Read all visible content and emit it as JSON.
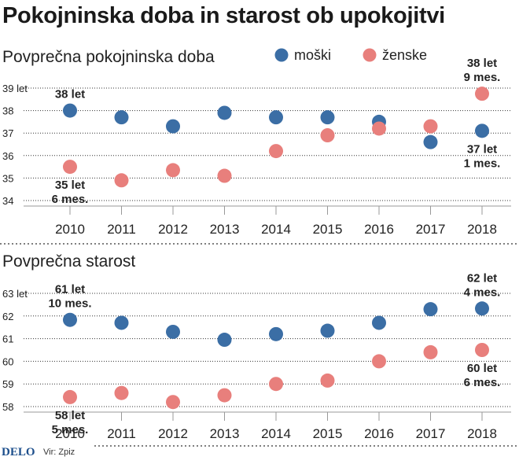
{
  "title": "Pokojninska doba in starost ob upokojitvi",
  "colors": {
    "male": "#3b6ea5",
    "female": "#e87f7c",
    "grid": "#333333",
    "axis": "#999999"
  },
  "legend": [
    {
      "label": "moški",
      "color": "#3b6ea5"
    },
    {
      "label": "ženske",
      "color": "#e87f7c"
    }
  ],
  "chart_data": [
    {
      "type": "scatter",
      "title": "Povprečna pokojninska doba",
      "x": [
        "2010",
        "2011",
        "2012",
        "2013",
        "2014",
        "2015",
        "2016",
        "2017",
        "2018"
      ],
      "series": [
        {
          "name": "moški",
          "values": [
            38.0,
            37.7,
            37.3,
            37.9,
            37.7,
            37.7,
            37.5,
            36.6,
            37.1
          ]
        },
        {
          "name": "ženske",
          "values": [
            35.5,
            34.9,
            35.35,
            35.1,
            36.2,
            36.9,
            37.2,
            37.3,
            38.75
          ]
        }
      ],
      "ylim": [
        34,
        39
      ],
      "yticks": [
        "34",
        "35",
        "36",
        "37",
        "38",
        "39 let"
      ],
      "grid": true,
      "annotations": [
        {
          "lines": [
            "38 let"
          ],
          "x": "2010",
          "series": "moški"
        },
        {
          "lines": [
            "35 let",
            "6 mes."
          ],
          "x": "2010",
          "series": "ženske"
        },
        {
          "lines": [
            "38 let",
            "9 mes."
          ],
          "x": "2018",
          "series": "ženske"
        },
        {
          "lines": [
            "37 let",
            "1 mes."
          ],
          "x": "2018",
          "series": "moški"
        }
      ]
    },
    {
      "type": "scatter",
      "title": "Povprečna starost",
      "x": [
        "2010",
        "2011",
        "2012",
        "2013",
        "2014",
        "2015",
        "2016",
        "2017",
        "2018"
      ],
      "series": [
        {
          "name": "moški",
          "values": [
            61.83,
            61.7,
            61.3,
            60.95,
            61.2,
            61.35,
            61.7,
            62.3,
            62.33
          ]
        },
        {
          "name": "ženske",
          "values": [
            58.42,
            58.6,
            58.2,
            58.5,
            59.0,
            59.15,
            60.0,
            60.4,
            60.5
          ]
        }
      ],
      "ylim": [
        58,
        63
      ],
      "yticks": [
        "58",
        "59",
        "60",
        "61",
        "62",
        "63 let"
      ],
      "grid": true,
      "annotations": [
        {
          "lines": [
            "61 let",
            "10 mes."
          ],
          "x": "2010",
          "series": "moški"
        },
        {
          "lines": [
            "58 let",
            "5 mes."
          ],
          "x": "2010",
          "series": "ženske"
        },
        {
          "lines": [
            "62 let",
            "4 mes."
          ],
          "x": "2018",
          "series": "moški"
        },
        {
          "lines": [
            "60 let",
            "6 mes."
          ],
          "x": "2018",
          "series": "ženske"
        }
      ]
    }
  ],
  "footer": {
    "logo": "DELO",
    "source": "Vir: Zpiz"
  }
}
